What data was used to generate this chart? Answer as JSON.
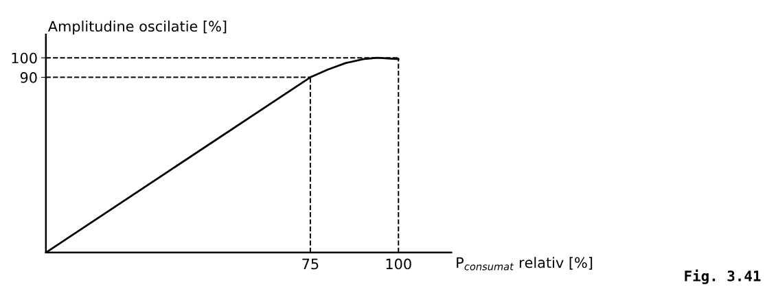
{
  "chart_data": {
    "type": "line",
    "xlabel": "P$_{consumat}$ relativ [%]",
    "ylabel": "Amplitudine oscilatie [%]",
    "x": [
      0,
      75,
      80,
      85,
      90,
      94,
      100
    ],
    "series": [
      {
        "color": "#000000",
        "values": [
          0,
          90,
          94,
          97.3,
          99.3,
          100,
          99.3
        ]
      }
    ],
    "xlim": [
      0,
      115
    ],
    "ylim": [
      0,
      112
    ],
    "xticks": [
      75,
      100
    ],
    "yticks": [
      90,
      100
    ],
    "ref_lines": [
      {
        "axis": "y",
        "value": 100,
        "line_style": "dashed",
        "color": "#000000"
      },
      {
        "axis": "y",
        "value": 90,
        "line_style": "dashed",
        "color": "#000000"
      },
      {
        "axis": "x",
        "value": 75,
        "line_style": "dashed",
        "color": "#000000"
      },
      {
        "axis": "x",
        "value": 100,
        "line_style": "dashed",
        "color": "#000000"
      }
    ],
    "annotations": [
      "Fig. 3.41"
    ],
    "grid": false,
    "legend": false,
    "marker": "none",
    "line_style": "solid"
  }
}
